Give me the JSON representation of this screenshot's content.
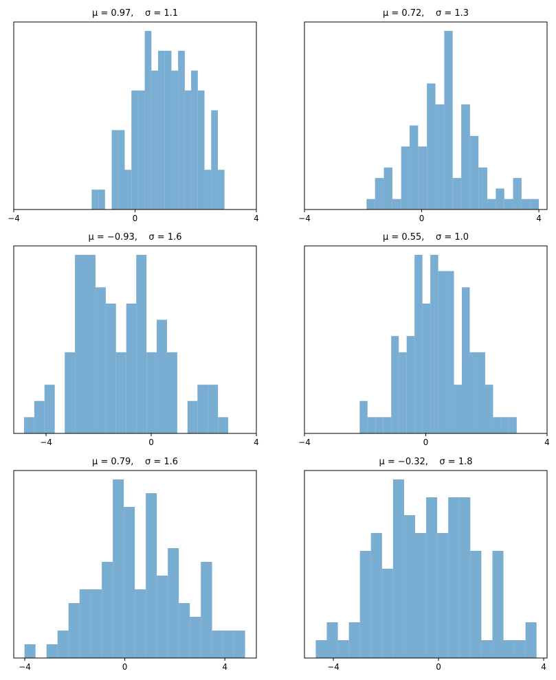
{
  "chart_data": [
    {
      "type": "histogram",
      "title": "μ = 0.97,    σ = 1.1",
      "color": "#79add2",
      "bins": [
        -1.43,
        -1.21,
        -0.99,
        -0.77,
        -0.55,
        -0.34,
        -0.12,
        0.1,
        0.32,
        0.54,
        0.76,
        0.98,
        1.2,
        1.42,
        1.64,
        1.85,
        2.07,
        2.29,
        2.51,
        2.73,
        2.95
      ],
      "values": [
        1,
        1,
        0,
        4,
        4,
        2,
        6,
        6,
        9,
        7,
        8,
        8,
        7,
        8,
        6,
        7,
        6,
        2,
        5,
        2
      ],
      "xlim": [
        -4,
        4
      ],
      "ylim": [
        0,
        9.45
      ],
      "xticks": [
        {
          "value": -4,
          "label": "−4"
        },
        0,
        4
      ]
    },
    {
      "type": "histogram",
      "title": "μ = 0.72,    σ = 1.3",
      "color": "#79add2",
      "bins": [
        -1.88,
        -1.59,
        -1.29,
        -1.0,
        -0.7,
        -0.41,
        -0.12,
        0.18,
        0.47,
        0.77,
        1.06,
        1.35,
        1.65,
        1.94,
        2.24,
        2.53,
        2.82,
        3.12,
        3.41,
        3.71,
        4.0
      ],
      "values": [
        1,
        3,
        4,
        1,
        6,
        8,
        6,
        12,
        10,
        17,
        3,
        10,
        7,
        4,
        1,
        2,
        1,
        3,
        1,
        1
      ],
      "xlim": [
        -4,
        4.28
      ],
      "ylim": [
        0,
        17.85
      ],
      "xticks": [
        {
          "value": -4,
          "label": "−4"
        },
        0,
        4
      ]
    },
    {
      "type": "histogram",
      "title": "μ = −0.93,    σ = 1.6",
      "color": "#79add2",
      "bins": [
        -4.84,
        -4.45,
        -4.06,
        -3.67,
        -3.29,
        -2.9,
        -2.51,
        -2.12,
        -1.73,
        -1.34,
        -0.95,
        -0.57,
        -0.18,
        0.21,
        0.6,
        0.99,
        1.38,
        1.76,
        2.15,
        2.54,
        2.93
      ],
      "values": [
        1,
        2,
        3,
        0,
        5,
        11,
        11,
        9,
        8,
        5,
        8,
        11,
        5,
        7,
        5,
        0,
        2,
        3,
        3,
        1
      ],
      "xlim": [
        -5.23,
        4
      ],
      "ylim": [
        0,
        11.55
      ],
      "xticks": [
        {
          "value": -4,
          "label": "−4"
        },
        0,
        4
      ]
    },
    {
      "type": "histogram",
      "title": "μ = 0.55,    σ = 1.0",
      "color": "#79add2",
      "bins": [
        -2.18,
        -1.92,
        -1.66,
        -1.4,
        -1.14,
        -0.89,
        -0.63,
        -0.37,
        -0.11,
        0.15,
        0.41,
        0.67,
        0.93,
        1.19,
        1.45,
        1.71,
        1.96,
        2.22,
        2.48,
        2.74,
        3.0
      ],
      "values": [
        2,
        1,
        1,
        1,
        6,
        5,
        6,
        11,
        8,
        11,
        10,
        10,
        3,
        9,
        5,
        5,
        3,
        1,
        1,
        1
      ],
      "xlim": [
        -4,
        4
      ],
      "ylim": [
        0,
        11.55
      ],
      "xticks": [
        {
          "value": -4,
          "label": "−4"
        },
        0,
        4
      ]
    },
    {
      "type": "histogram",
      "title": "μ = 0.79,    σ = 1.6",
      "color": "#79add2",
      "bins": [
        -4.01,
        -3.57,
        -3.13,
        -2.69,
        -2.25,
        -1.81,
        -1.36,
        -0.92,
        -0.48,
        -0.04,
        0.4,
        0.84,
        1.28,
        1.72,
        2.16,
        2.6,
        3.04,
        3.49,
        3.93,
        4.37,
        4.81
      ],
      "values": [
        1,
        0,
        1,
        2,
        4,
        5,
        5,
        7,
        13,
        11,
        5,
        12,
        6,
        8,
        4,
        3,
        7,
        2,
        2,
        2
      ],
      "xlim": [
        -4.44,
        5.26
      ],
      "ylim": [
        0,
        13.65
      ],
      "xticks": [
        {
          "value": -4,
          "label": "−4"
        },
        0,
        4
      ]
    },
    {
      "type": "histogram",
      "title": "μ = −0.32,    σ = 1.8",
      "color": "#79add2",
      "bins": [
        -4.67,
        -4.25,
        -3.83,
        -3.41,
        -2.99,
        -2.57,
        -2.15,
        -1.73,
        -1.31,
        -0.89,
        -0.47,
        -0.05,
        0.37,
        0.79,
        1.21,
        1.63,
        2.05,
        2.47,
        2.89,
        3.31,
        3.73
      ],
      "values": [
        1,
        2,
        1,
        2,
        6,
        7,
        5,
        10,
        8,
        7,
        9,
        7,
        9,
        9,
        6,
        1,
        6,
        1,
        1,
        2
      ],
      "xlim": [
        -5.1,
        4.13
      ],
      "ylim": [
        0,
        10.5
      ],
      "xticks": [
        {
          "value": -4,
          "label": "−4"
        },
        0,
        4
      ]
    }
  ]
}
